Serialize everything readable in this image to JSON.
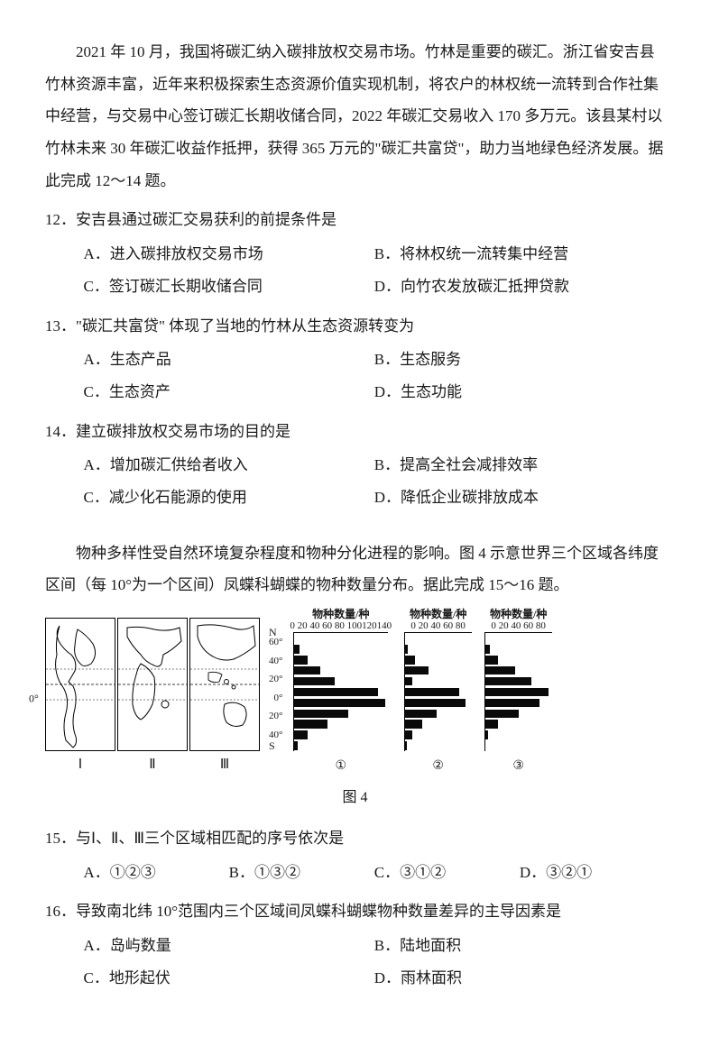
{
  "passage1": "2021 年 10 月，我国将碳汇纳入碳排放权交易市场。竹林是重要的碳汇。浙江省安吉县竹林资源丰富，近年来积极探索生态资源价值实现机制，将农户的林权统一流转到合作社集中经营，与交易中心签订碳汇长期收储合同，2022 年碳汇交易收入 170 多万元。该县某村以竹林未来 30 年碳汇收益作抵押，获得 365 万元的\"碳汇共富贷\"，助力当地绿色经济发展。据此完成 12～14 题。",
  "q12": {
    "stem": "12．安吉县通过碳汇交易获利的前提条件是",
    "A": "A．进入碳排放权交易市场",
    "B": "B．将林权统一流转集中经营",
    "C": "C．签订碳汇长期收储合同",
    "D": "D．向竹农发放碳汇抵押贷款"
  },
  "q13": {
    "stem": "13．\"碳汇共富贷\" 体现了当地的竹林从生态资源转变为",
    "A": "A．生态产品",
    "B": "B．生态服务",
    "C": "C．生态资产",
    "D": "D．生态功能"
  },
  "q14": {
    "stem": "14．建立碳排放权交易市场的目的是",
    "A": "A．增加碳汇供给者收入",
    "B": "B．提高全社会减排效率",
    "C": "C．减少化石能源的使用",
    "D": "D．降低企业碳排放成本"
  },
  "passage2": "物种多样性受自然环境复杂程度和物种分化进程的影响。图 4 示意世界三个区域各纬度区间（每 10°为一个区间）凤蝶科蝴蝶的物种数量分布。据此完成 15～16 题。",
  "figure": {
    "caption": "图 4",
    "map_labels": [
      "Ⅰ",
      "Ⅱ",
      "Ⅲ"
    ],
    "equator": "0°",
    "lat_ticks": [
      "60°",
      "40°",
      "20°",
      "0°",
      "20°",
      "40°"
    ],
    "ns_n": "N",
    "ns_s": "S",
    "charts": [
      {
        "title": "物种数量/种",
        "scale_text": "0 20 40 60 80 100120140",
        "max": 140,
        "id": "①",
        "bars": [
          0,
          8,
          20,
          38,
          60,
          125,
          135,
          80,
          50,
          20,
          5
        ]
      },
      {
        "title": "物种数量/种",
        "scale_text": "0 20 40 60 80",
        "max": 80,
        "id": "②",
        "bars": [
          0,
          3,
          12,
          28,
          8,
          65,
          72,
          38,
          20,
          8,
          2
        ]
      },
      {
        "title": "物种数量/种",
        "scale_text": "0 20 40 60 80",
        "max": 80,
        "id": "③",
        "bars": [
          0,
          5,
          15,
          35,
          55,
          75,
          65,
          40,
          15,
          3,
          0
        ]
      }
    ]
  },
  "q15": {
    "stem": "15．与Ⅰ、Ⅱ、Ⅲ三个区域相匹配的序号依次是",
    "A": "A．①②③",
    "B": "B．①③②",
    "C": "C．③①②",
    "D": "D．③②①"
  },
  "q16": {
    "stem": "16．导致南北纬 10°范围内三个区域间凤蝶科蝴蝶物种数量差异的主导因素是",
    "A": "A．岛屿数量",
    "B": "B．陆地面积",
    "C": "C．地形起伏",
    "D": "D．雨林面积"
  },
  "colors": {
    "bar": "#0a0a0a",
    "border": "#000000",
    "bg": "#ffffff"
  }
}
